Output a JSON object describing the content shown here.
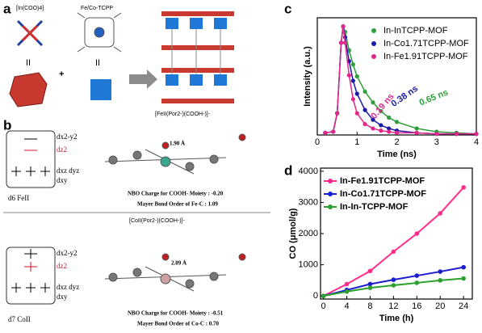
{
  "figure": {
    "panel_labels": [
      "a",
      "b",
      "c",
      "d"
    ],
    "panel_a": {
      "linker": "[In(COO)4]",
      "porphyrin": "Fe/Co-TCPP",
      "caption": "[FeII(Por2-)(COOH-)]-"
    },
    "panel_b": {
      "fe": {
        "orbitals": [
          "dx2-y2",
          "dz2",
          "dxz dyz",
          "dxy"
        ],
        "bond": "1.90 Å",
        "nbo": "NBO Charge for COOH- Moiety : -0.20",
        "mayer": "Mayer Bond Order of Fe-C : 1.09",
        "config": "d6 FeII"
      },
      "caption": "[CoII(Por2-)(COOH-)]-",
      "co": {
        "orbitals": [
          "dx2-y2",
          "dz2",
          "dxz dyz",
          "dxy"
        ],
        "bond": "2.09 Å",
        "nbo": "NBO Charge for COOH- Moiety : -0.51",
        "mayer": "Mayer Bond Order of Co-C : 0.70",
        "config": "d7 CoII"
      }
    }
  },
  "chart_data": [
    {
      "type": "scatter-line",
      "xlabel": "Time (ns)",
      "ylabel": "Intensity (a.u.)",
      "x": [
        0.2,
        0.4,
        0.5,
        0.6,
        0.65,
        0.7,
        0.8,
        0.9,
        1.0,
        1.2,
        1.4,
        1.6,
        1.8,
        2.0,
        2.5,
        3.0,
        3.5,
        4.0
      ],
      "series": [
        {
          "name": "In-InTCPP-MOF",
          "color": "#2e9e3a",
          "values": [
            0.02,
            0.03,
            0.2,
            0.85,
            1.0,
            0.95,
            0.78,
            0.65,
            0.54,
            0.4,
            0.3,
            0.22,
            0.16,
            0.12,
            0.06,
            0.03,
            0.02,
            0.01
          ]
        },
        {
          "name": "In-Co1.71TCPP-MOF",
          "color": "#1a1aa8",
          "values": [
            0.02,
            0.03,
            0.2,
            0.85,
            1.0,
            0.9,
            0.68,
            0.5,
            0.38,
            0.23,
            0.14,
            0.09,
            0.06,
            0.04,
            0.02,
            0.01,
            0.01,
            0.01
          ]
        },
        {
          "name": "In-Fe1.91TCPP-MOF",
          "color": "#e0288a",
          "values": [
            0.02,
            0.03,
            0.2,
            0.85,
            1.0,
            0.85,
            0.55,
            0.33,
            0.2,
            0.1,
            0.06,
            0.04,
            0.03,
            0.02,
            0.02,
            0.01,
            0.01,
            0.01
          ]
        }
      ],
      "annotations": [
        "0.65 ns",
        "0.38 ns",
        "0.19 ns"
      ],
      "xlim": [
        0,
        4
      ],
      "xticks": [
        0,
        1,
        2,
        3,
        4
      ],
      "ylim": [
        0,
        1.08
      ],
      "legend": "upper right"
    },
    {
      "type": "line",
      "xlabel": "Time (h)",
      "ylabel": "CO (μmol/g)",
      "x": [
        0,
        4,
        8,
        12,
        16,
        20,
        24
      ],
      "series": [
        {
          "name": "In-Fe1.91TCPP-MOF",
          "color": "#ff2d8c",
          "values": [
            0,
            380,
            800,
            1420,
            2000,
            2650,
            3480
          ]
        },
        {
          "name": "In-Co1.71TCPP-MOF",
          "color": "#1c1cd0",
          "values": [
            0,
            190,
            380,
            520,
            650,
            780,
            920
          ]
        },
        {
          "name": "In-In-TCPP-MOF",
          "color": "#2ca02c",
          "values": [
            0,
            140,
            260,
            340,
            420,
            500,
            560
          ]
        }
      ],
      "xlim": [
        -0.5,
        25.5
      ],
      "xticks": [
        0,
        4,
        8,
        12,
        16,
        20,
        24
      ],
      "ylim": [
        -100,
        4100
      ],
      "yticks": [
        0,
        1000,
        2000,
        3000,
        4000
      ],
      "legend": "upper left"
    }
  ]
}
